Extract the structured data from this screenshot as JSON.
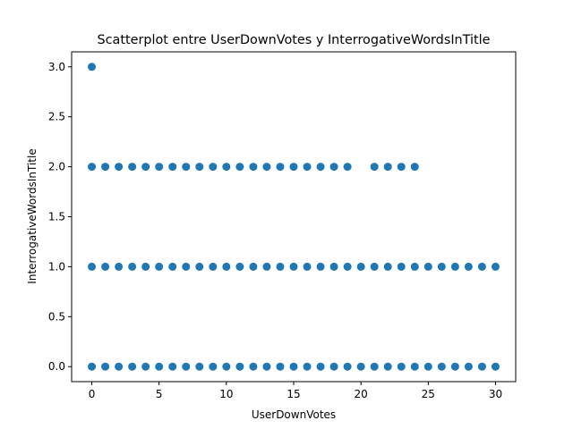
{
  "chart_data": {
    "type": "scatter",
    "title": "Scatterplot entre UserDownVotes y InterrogativeWordsInTitle",
    "xlabel": "UserDownVotes",
    "ylabel": "InterrogativeWordsInTitle",
    "xlim": [
      -1.5,
      31.5
    ],
    "ylim": [
      -0.15,
      3.15
    ],
    "xticks": [
      0,
      5,
      10,
      15,
      20,
      25,
      30
    ],
    "yticks": [
      0.0,
      0.5,
      1.0,
      1.5,
      2.0,
      2.5,
      3.0
    ],
    "xtick_labels": [
      "0",
      "5",
      "10",
      "15",
      "20",
      "25",
      "30"
    ],
    "ytick_labels": [
      "0.0",
      "0.5",
      "1.0",
      "1.5",
      "2.0",
      "2.5",
      "3.0"
    ],
    "grid": false,
    "marker_color": "#1f77b4",
    "series": [
      {
        "points": [
          [
            0,
            3
          ],
          [
            0,
            2
          ],
          [
            1,
            2
          ],
          [
            2,
            2
          ],
          [
            3,
            2
          ],
          [
            4,
            2
          ],
          [
            5,
            2
          ],
          [
            6,
            2
          ],
          [
            7,
            2
          ],
          [
            8,
            2
          ],
          [
            9,
            2
          ],
          [
            10,
            2
          ],
          [
            11,
            2
          ],
          [
            12,
            2
          ],
          [
            13,
            2
          ],
          [
            14,
            2
          ],
          [
            15,
            2
          ],
          [
            16,
            2
          ],
          [
            17,
            2
          ],
          [
            18,
            2
          ],
          [
            19,
            2
          ],
          [
            21,
            2
          ],
          [
            22,
            2
          ],
          [
            23,
            2
          ],
          [
            24,
            2
          ],
          [
            0,
            1
          ],
          [
            1,
            1
          ],
          [
            2,
            1
          ],
          [
            3,
            1
          ],
          [
            4,
            1
          ],
          [
            5,
            1
          ],
          [
            6,
            1
          ],
          [
            7,
            1
          ],
          [
            8,
            1
          ],
          [
            9,
            1
          ],
          [
            10,
            1
          ],
          [
            11,
            1
          ],
          [
            12,
            1
          ],
          [
            13,
            1
          ],
          [
            14,
            1
          ],
          [
            15,
            1
          ],
          [
            16,
            1
          ],
          [
            17,
            1
          ],
          [
            18,
            1
          ],
          [
            19,
            1
          ],
          [
            20,
            1
          ],
          [
            21,
            1
          ],
          [
            22,
            1
          ],
          [
            23,
            1
          ],
          [
            24,
            1
          ],
          [
            25,
            1
          ],
          [
            26,
            1
          ],
          [
            27,
            1
          ],
          [
            28,
            1
          ],
          [
            29,
            1
          ],
          [
            30,
            1
          ],
          [
            0,
            0
          ],
          [
            1,
            0
          ],
          [
            2,
            0
          ],
          [
            3,
            0
          ],
          [
            4,
            0
          ],
          [
            5,
            0
          ],
          [
            6,
            0
          ],
          [
            7,
            0
          ],
          [
            8,
            0
          ],
          [
            9,
            0
          ],
          [
            10,
            0
          ],
          [
            11,
            0
          ],
          [
            12,
            0
          ],
          [
            13,
            0
          ],
          [
            14,
            0
          ],
          [
            15,
            0
          ],
          [
            16,
            0
          ],
          [
            17,
            0
          ],
          [
            18,
            0
          ],
          [
            19,
            0
          ],
          [
            20,
            0
          ],
          [
            21,
            0
          ],
          [
            22,
            0
          ],
          [
            23,
            0
          ],
          [
            24,
            0
          ],
          [
            25,
            0
          ],
          [
            26,
            0
          ],
          [
            27,
            0
          ],
          [
            28,
            0
          ],
          [
            29,
            0
          ],
          [
            30,
            0
          ]
        ]
      }
    ]
  }
}
